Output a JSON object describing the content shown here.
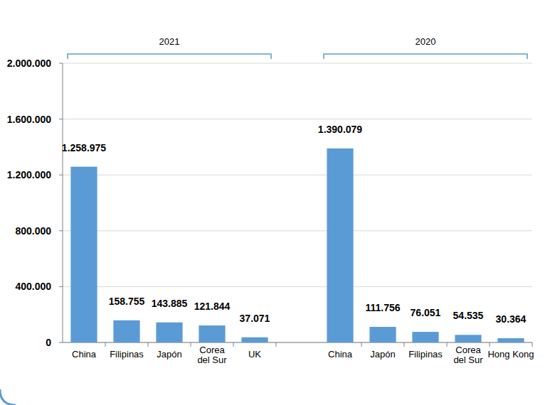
{
  "chart_data": {
    "type": "bar",
    "groups": [
      {
        "name": "2021",
        "categories": [
          "China",
          "Filipinas",
          "Japón",
          "Corea del Sur",
          "UK"
        ],
        "values": [
          1258975,
          158755,
          143885,
          121844,
          37071
        ],
        "value_labels": [
          "1.258.975",
          "158.755",
          "143.885",
          "121.844",
          "37.071"
        ]
      },
      {
        "name": "2020",
        "categories": [
          "China",
          "Japón",
          "Filipinas",
          "Corea del Sur",
          "Hong Kong"
        ],
        "values": [
          1390079,
          111756,
          76051,
          54535,
          30364
        ],
        "value_labels": [
          "1.390.079",
          "111.756",
          "76.051",
          "54.535",
          "30.364"
        ]
      }
    ],
    "color": "#5b9bd5",
    "ylim": [
      0,
      2000000
    ],
    "yticks": [
      0,
      {
        "value": 400000,
        "label": "400.000"
      },
      {
        "value": 800000,
        "label": "800.000"
      },
      {
        "value": 1200000,
        "label": "1.200.000"
      },
      {
        "value": 1600000,
        "label": "1.600.000"
      },
      {
        "value": 2000000,
        "label": "2.000.000"
      }
    ],
    "grid": true,
    "data_labels": true
  }
}
